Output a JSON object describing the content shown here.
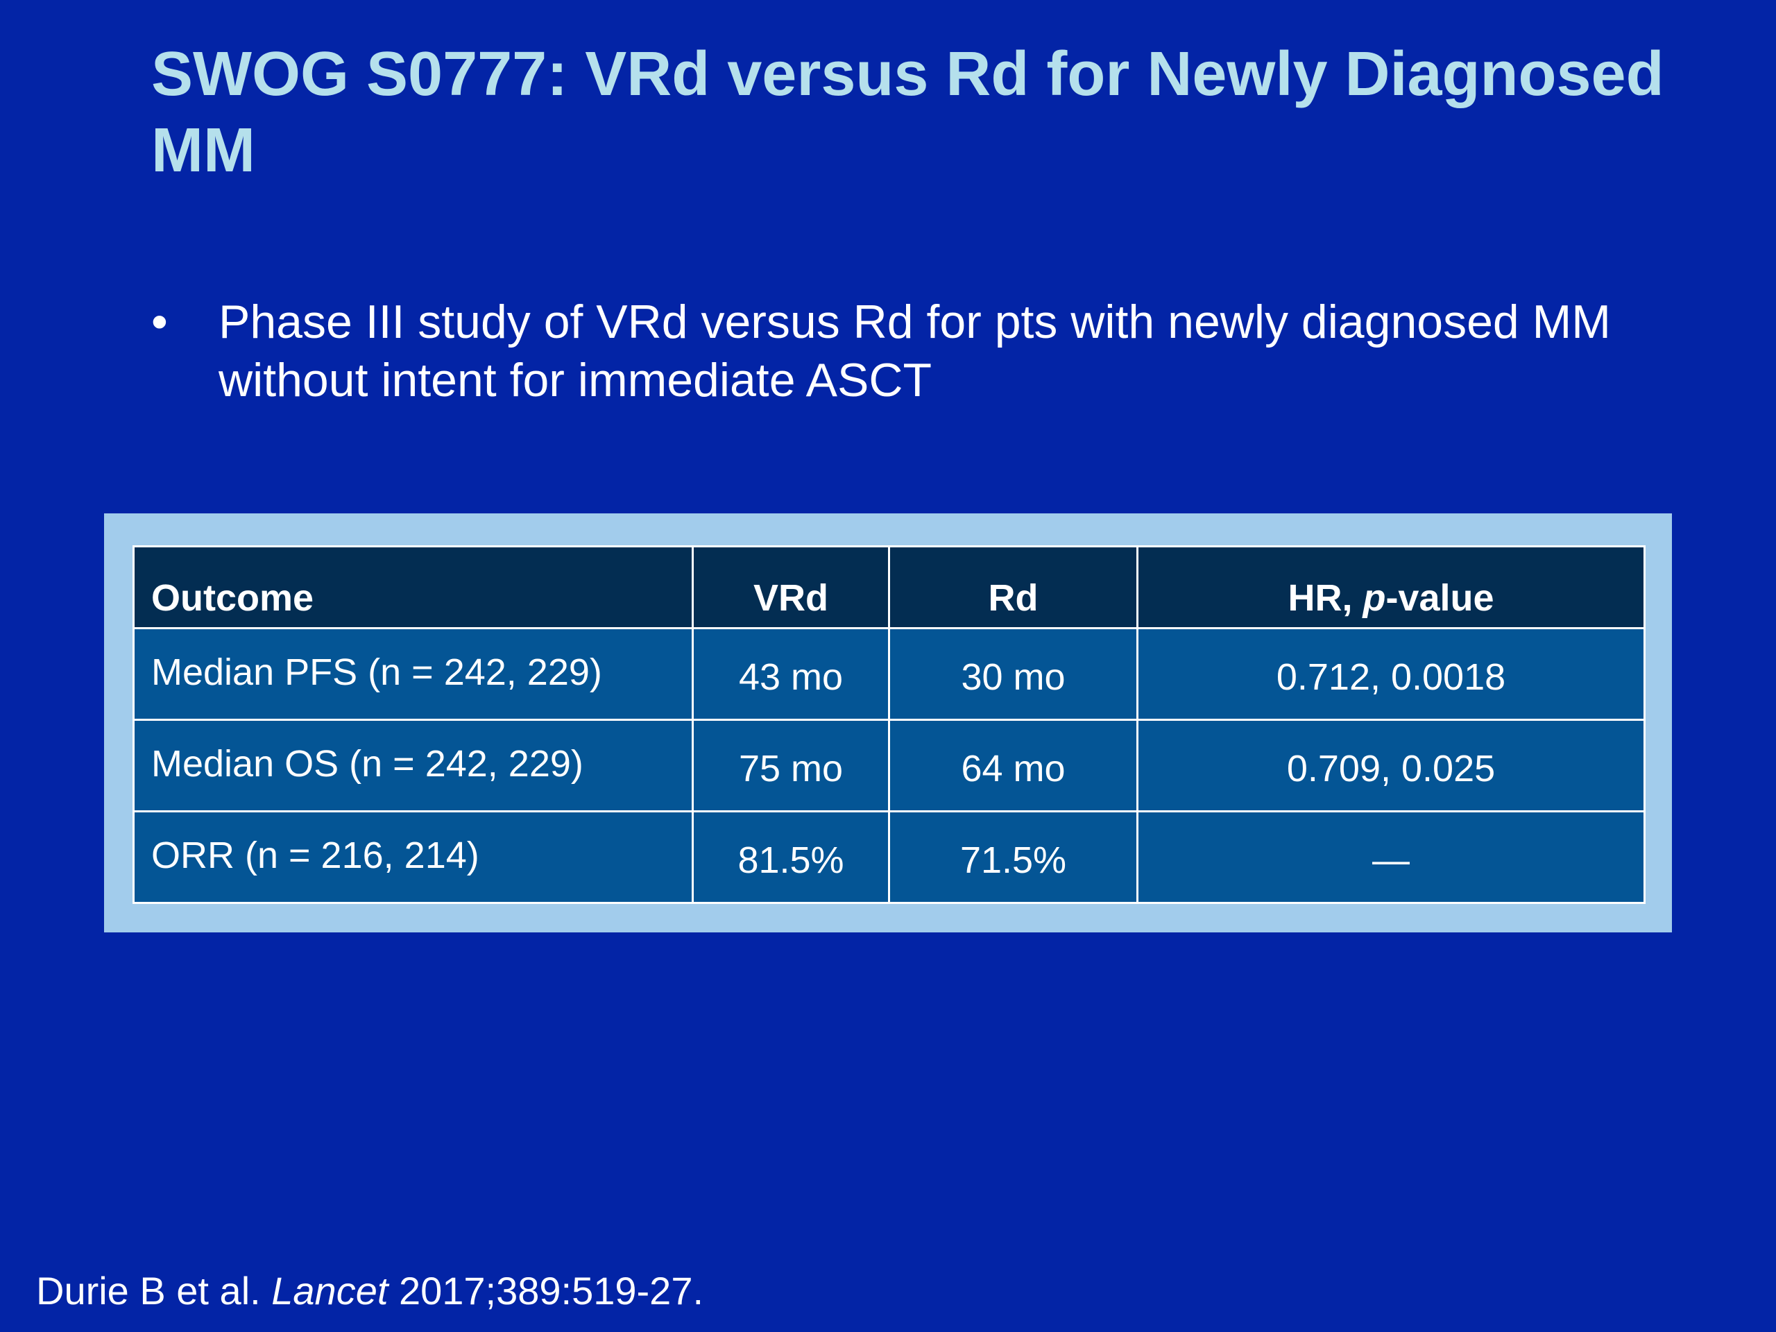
{
  "slide": {
    "title": "SWOG S0777: VRd versus Rd for Newly Diagnosed MM",
    "bullets": [
      "Phase III study of VRd versus Rd for pts with newly diagnosed MM without intent for immediate ASCT"
    ],
    "bullet_symbol": "•"
  },
  "table": {
    "headers": {
      "outcome": "Outcome",
      "vrd": "VRd",
      "rd": "Rd",
      "hr_prefix": "HR, ",
      "hr_italic": "p",
      "hr_suffix": "-value"
    },
    "rows": [
      {
        "outcome": "Median PFS (n = 242, 229)",
        "vrd": "43 mo",
        "rd": "30 mo",
        "hr": "0.712, 0.0018"
      },
      {
        "outcome": "Median OS (n = 242, 229)",
        "vrd": "75 mo",
        "rd": "64 mo",
        "hr": "0.709, 0.025"
      },
      {
        "outcome": "ORR (n = 216, 214)",
        "vrd": "81.5%",
        "rd": "71.5%",
        "hr": "—"
      }
    ]
  },
  "citation": {
    "authors": "Durie B et al. ",
    "journal": "Lancet",
    "details": " 2017;389:519-27."
  },
  "colors": {
    "background": "#0324A6",
    "title": "#B5E0EC",
    "table_frame": "#A2CCEC",
    "table_header": "#032D52",
    "table_body": "#045595"
  }
}
